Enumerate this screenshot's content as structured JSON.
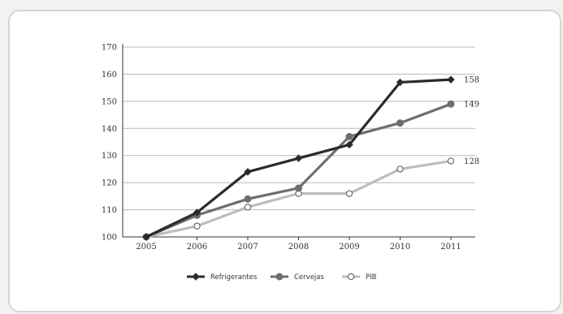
{
  "chart_data": {
    "type": "line",
    "title": "",
    "xlabel": "",
    "ylabel": "",
    "x": [
      "2005",
      "2006",
      "2007",
      "2008",
      "2009",
      "2010",
      "2011"
    ],
    "ylim": [
      100,
      170
    ],
    "yticks": [
      100,
      110,
      120,
      130,
      140,
      150,
      160,
      170
    ],
    "grid": true,
    "legend_position": "bottom",
    "series": [
      {
        "name": "Refrigerantes",
        "values": [
          100,
          109,
          124,
          129,
          134,
          157,
          158
        ],
        "end_label": "158",
        "color": "#2b2b2b",
        "marker": "diamond"
      },
      {
        "name": "Cervejas",
        "values": [
          100,
          108,
          114,
          118,
          137,
          142,
          149
        ],
        "end_label": "149",
        "color": "#6e6e6e",
        "marker": "circle"
      },
      {
        "name": "PIB",
        "values": [
          100,
          104,
          111,
          116,
          116,
          125,
          128
        ],
        "end_label": "128",
        "color": "#bdbdbd",
        "marker": "open-circle"
      }
    ]
  }
}
